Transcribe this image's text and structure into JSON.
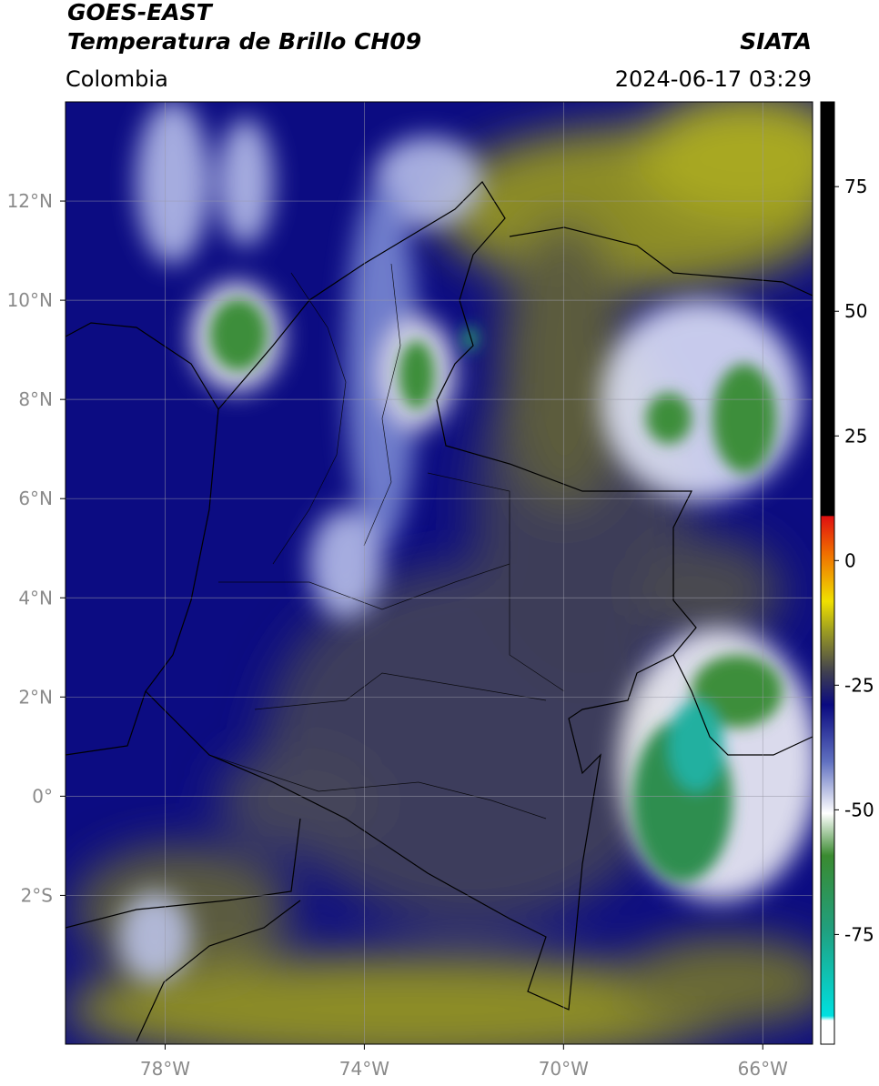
{
  "header": {
    "satellite": "GOES-EAST",
    "product": "Temperatura de Brillo CH09",
    "source": "SIATA",
    "region": "Colombia",
    "datetime": "2024-06-17 03:29"
  },
  "map": {
    "lon_range": [
      -80,
      -65
    ],
    "lat_range": [
      -5,
      14
    ],
    "lon_ticks": [
      {
        "value": -78,
        "label": "78°W"
      },
      {
        "value": -74,
        "label": "74°W"
      },
      {
        "value": -70,
        "label": "70°W"
      },
      {
        "value": -66,
        "label": "66°W"
      }
    ],
    "lat_ticks": [
      {
        "value": 12,
        "label": "12°N"
      },
      {
        "value": 10,
        "label": "10°N"
      },
      {
        "value": 8,
        "label": "8°N"
      },
      {
        "value": 6,
        "label": "6°N"
      },
      {
        "value": 4,
        "label": "4°N"
      },
      {
        "value": 2,
        "label": "2°N"
      },
      {
        "value": 0,
        "label": "0°"
      },
      {
        "value": -2,
        "label": "2°S"
      }
    ],
    "grid": true
  },
  "colorbar": {
    "range": [
      -97,
      92
    ],
    "ticks": [
      75,
      50,
      25,
      0,
      -25,
      -50,
      -75
    ]
  }
}
